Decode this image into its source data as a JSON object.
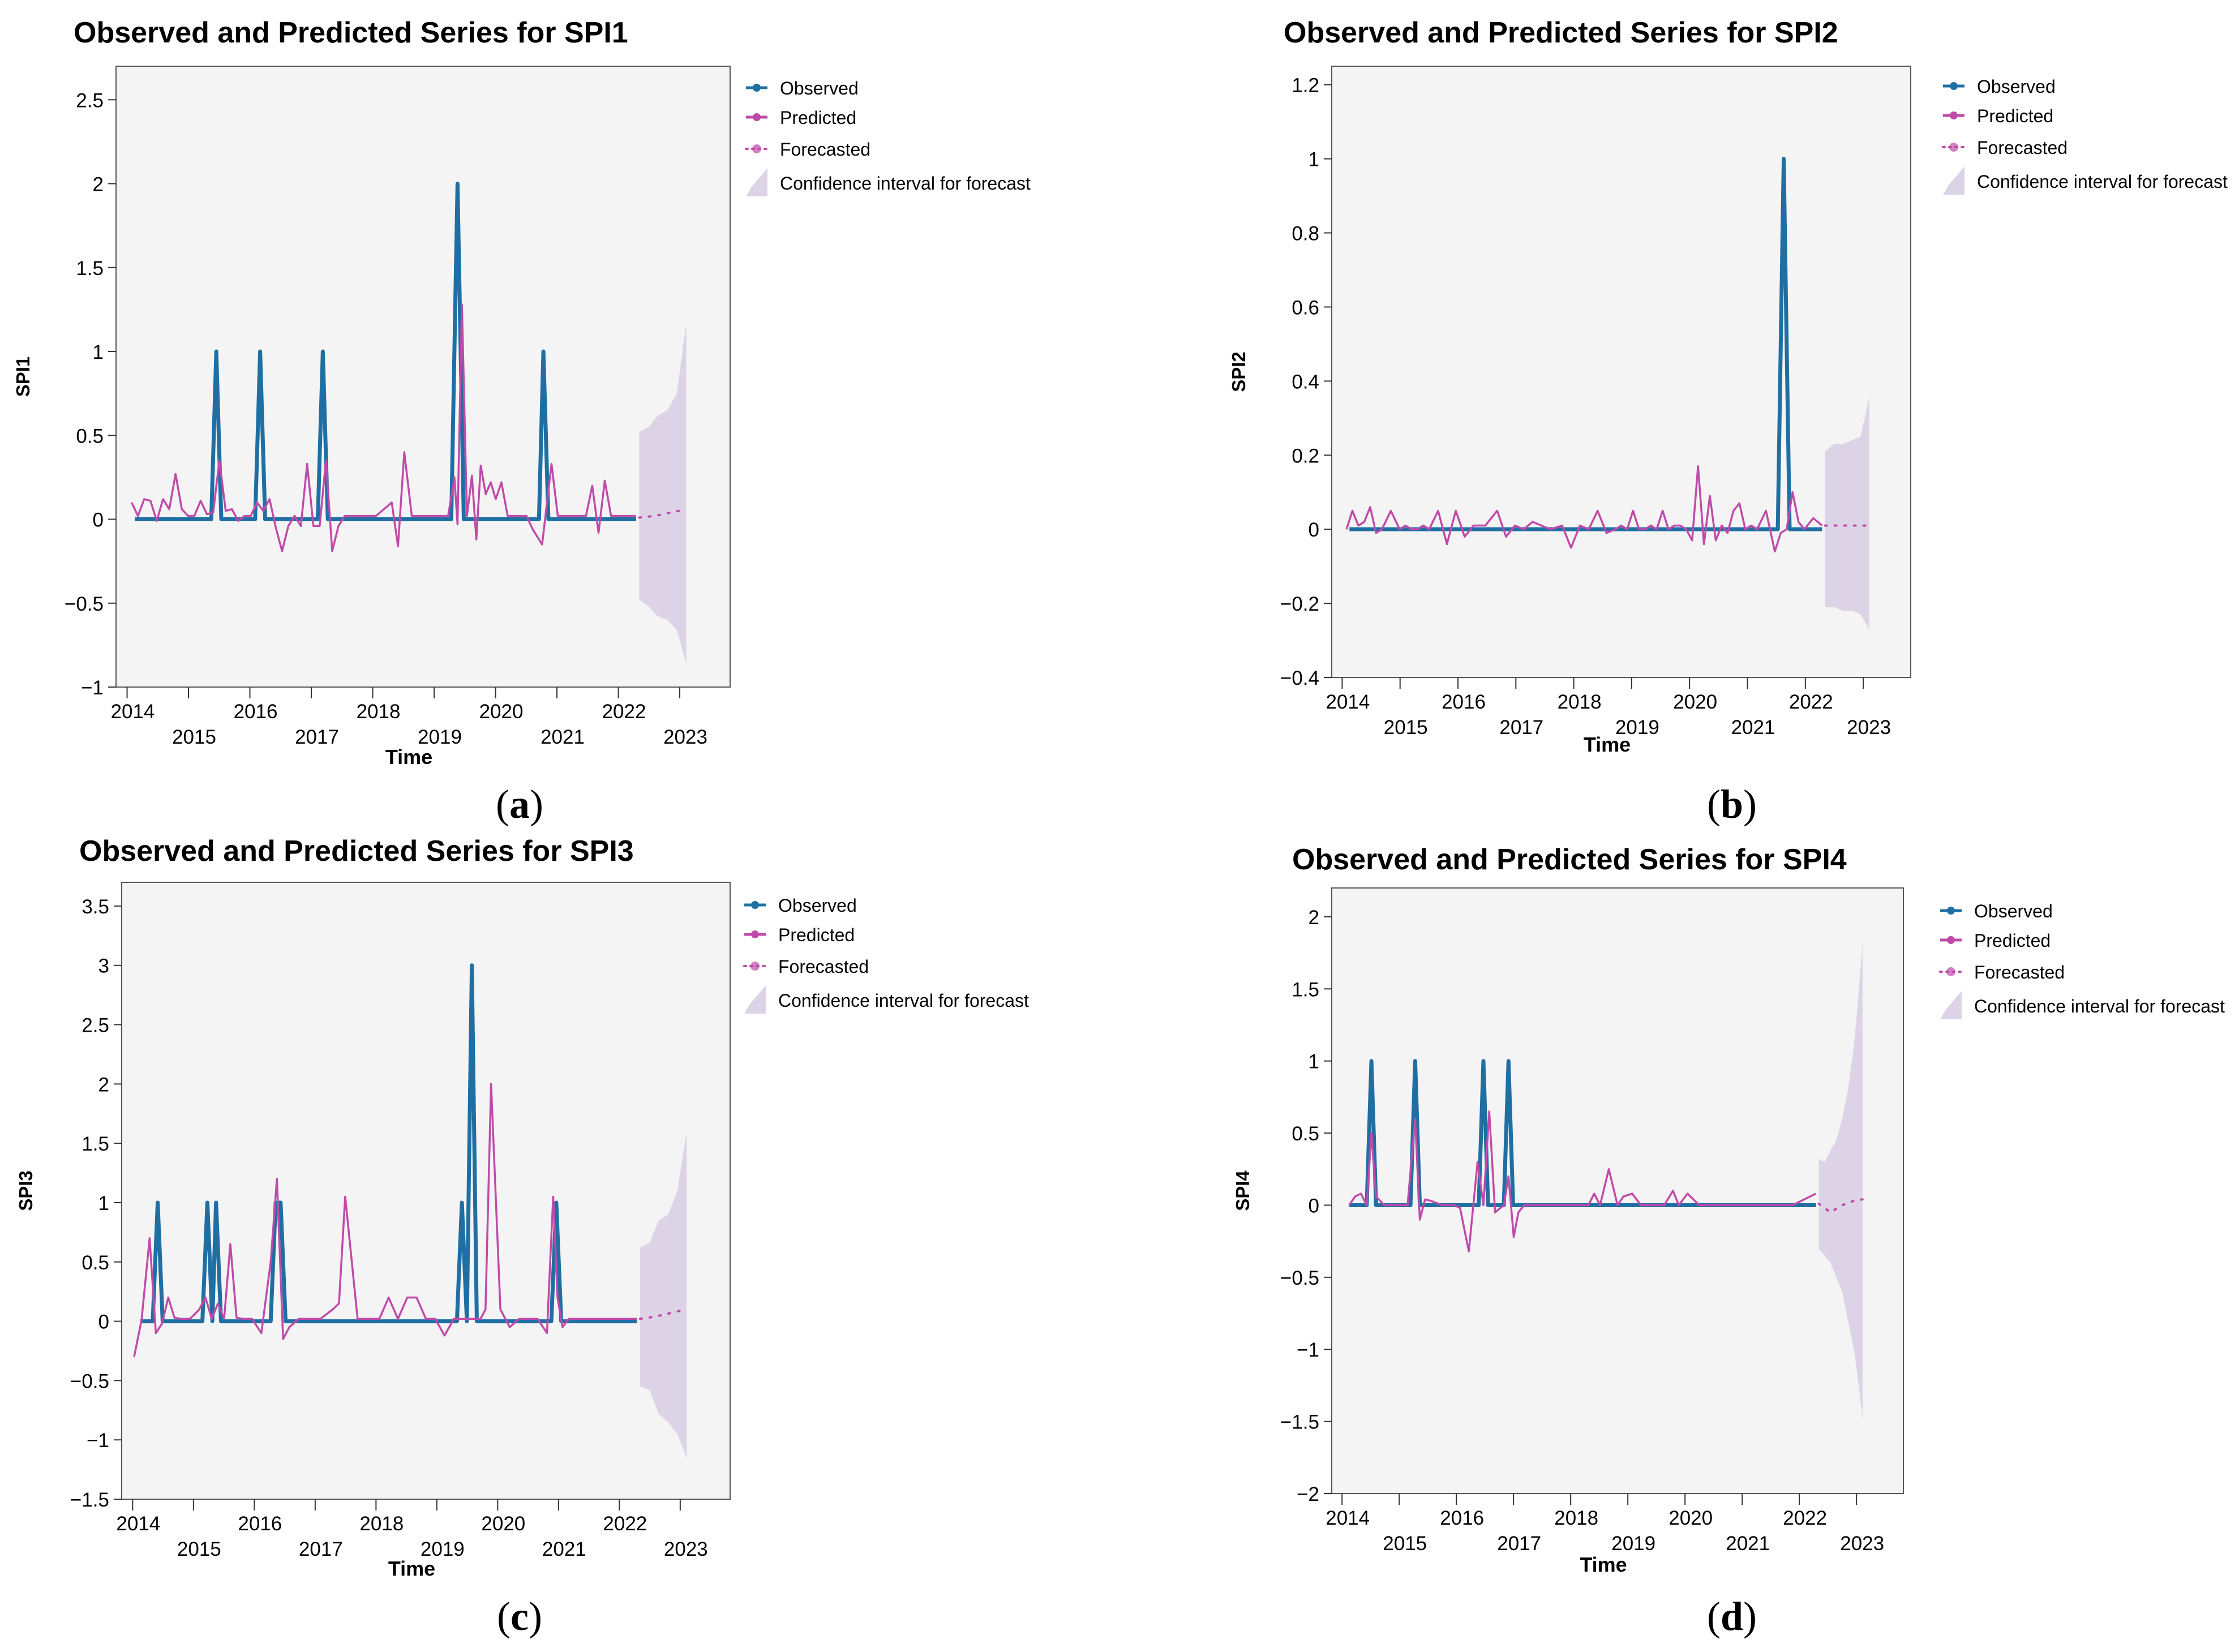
{
  "colors": {
    "observed": "#1f6fa3",
    "predicted": "#c04aa9",
    "forecasted": "#c04aa9",
    "ci": "#ddd3e6",
    "plot_bg": "#f4f4f4"
  },
  "legend": {
    "observed": "Observed",
    "predicted": "Predicted",
    "forecasted": "Forecasted",
    "ci": "Confidence interval for forecast"
  },
  "chart_data": [
    {
      "id": "a",
      "type": "line",
      "caption": "a",
      "title": "Observed and Predicted Series for SPI1",
      "xlabel": "Time",
      "ylabel": "SPI1",
      "ylim": [
        -1,
        2.7
      ],
      "yticks": [
        -1,
        -0.5,
        0,
        0.5,
        1,
        1.5,
        2,
        2.5
      ],
      "ytick_labels": [
        "−1",
        "−0.5",
        "0",
        "0.5",
        "1",
        "1.5",
        "2",
        "2.5"
      ],
      "xlim": [
        2013.6,
        2023.4
      ],
      "xticks": [
        2014,
        2015,
        2016,
        2017,
        2018,
        2019,
        2020,
        2021,
        2022,
        2023
      ],
      "xtick_labels": [
        "2014",
        "2015",
        "2016",
        "2017",
        "2018",
        "2019",
        "2020",
        "2021",
        "2022",
        "2023"
      ],
      "observed": {
        "x": [
          2013.9,
          2015.12,
          2015.2,
          2015.28,
          2015.82,
          2015.9,
          2015.98,
          2016.82,
          2016.9,
          2016.98,
          2018.95,
          2019.05,
          2019.15,
          2020.35,
          2020.42,
          2020.5,
          2021.9
        ],
        "y": [
          0,
          0,
          1,
          0,
          0,
          1,
          0,
          0,
          1,
          0,
          0,
          2,
          0,
          0,
          1,
          0,
          0
        ]
      },
      "predicted": {
        "x": [
          2013.85,
          2013.95,
          2014.05,
          2014.15,
          2014.25,
          2014.35,
          2014.45,
          2014.55,
          2014.65,
          2014.75,
          2014.85,
          2014.95,
          2015.05,
          2015.15,
          2015.25,
          2015.35,
          2015.45,
          2015.55,
          2015.65,
          2015.75,
          2015.85,
          2015.95,
          2016.05,
          2016.15,
          2016.25,
          2016.35,
          2016.45,
          2016.55,
          2016.65,
          2016.75,
          2016.85,
          2016.95,
          2017.05,
          2017.15,
          2017.25,
          2017.5,
          2017.75,
          2018.0,
          2018.1,
          2018.2,
          2018.32,
          2018.45,
          2018.6,
          2018.8,
          2018.9,
          2019.0,
          2019.05,
          2019.12,
          2019.2,
          2019.28,
          2019.35,
          2019.42,
          2019.5,
          2019.58,
          2019.66,
          2019.75,
          2019.85,
          2019.95,
          2020.05,
          2020.15,
          2020.25,
          2020.4,
          2020.55,
          2020.65,
          2020.8,
          2020.95,
          2021.1,
          2021.2,
          2021.3,
          2021.4,
          2021.5,
          2021.6,
          2021.75,
          2021.9
        ],
        "y": [
          0.1,
          0.02,
          0.12,
          0.11,
          -0.01,
          0.12,
          0.06,
          0.27,
          0.06,
          0.02,
          0.02,
          0.11,
          0.03,
          0.04,
          0.35,
          0.05,
          0.06,
          -0.01,
          0.02,
          0.02,
          0.1,
          0.05,
          0.12,
          -0.05,
          -0.19,
          -0.04,
          0.02,
          -0.04,
          0.33,
          -0.04,
          -0.04,
          0.35,
          -0.19,
          -0.04,
          0.02,
          0.02,
          0.02,
          0.1,
          -0.16,
          0.4,
          0.02,
          0.02,
          0.02,
          0.02,
          0.02,
          0.25,
          -0.03,
          1.28,
          0.02,
          0.26,
          -0.12,
          0.32,
          0.15,
          0.22,
          0.12,
          0.22,
          0.02,
          0.02,
          0.02,
          0.02,
          -0.06,
          -0.15,
          0.33,
          0.02,
          0.02,
          0.02,
          0.02,
          0.2,
          -0.08,
          0.23,
          0.02,
          0.02,
          0.02,
          0.02
        ],
        "forecast_x": [
          2021.95,
          2022.2,
          2022.45,
          2022.7
        ],
        "forecast_y": [
          0.01,
          0.02,
          0.04,
          0.06
        ],
        "ci_x": [
          2021.95,
          2022.1,
          2022.25,
          2022.4,
          2022.55,
          2022.7
        ],
        "ci_upper": [
          0.52,
          0.55,
          0.62,
          0.65,
          0.75,
          1.17
        ],
        "ci_lower": [
          -0.48,
          -0.52,
          -0.58,
          -0.6,
          -0.66,
          -0.86
        ]
      }
    },
    {
      "id": "b",
      "type": "line",
      "caption": "b",
      "title": "Observed and Predicted Series for SPI2",
      "xlabel": "Time",
      "ylabel": "SPI2",
      "ylim": [
        -0.4,
        1.25
      ],
      "yticks": [
        -0.4,
        -0.2,
        0,
        0.2,
        0.4,
        0.6,
        0.8,
        1,
        1.2
      ],
      "ytick_labels": [
        "−0.4",
        "−0.2",
        "0",
        "0.2",
        "0.4",
        "0.6",
        "0.8",
        "1",
        "1.2"
      ],
      "xlim": [
        2013.6,
        2023.4
      ],
      "xticks": [
        2014,
        2015,
        2016,
        2017,
        2018,
        2019,
        2020,
        2021,
        2022,
        2023
      ],
      "xtick_labels": [
        "2014",
        "2015",
        "2016",
        "2017",
        "2018",
        "2019",
        "2020",
        "2021",
        "2022",
        "2023"
      ],
      "observed": {
        "x": [
          2013.9,
          2021.15,
          2021.25,
          2021.35,
          2021.9
        ],
        "y": [
          0,
          0,
          1,
          0,
          0
        ]
      },
      "predicted": {
        "x": [
          2013.85,
          2013.95,
          2014.05,
          2014.15,
          2014.25,
          2014.35,
          2014.45,
          2014.6,
          2014.75,
          2014.85,
          2014.95,
          2015.05,
          2015.15,
          2015.25,
          2015.4,
          2015.55,
          2015.7,
          2015.85,
          2016.0,
          2016.2,
          2016.4,
          2016.55,
          2016.7,
          2016.85,
          2017.0,
          2017.15,
          2017.3,
          2017.5,
          2017.65,
          2017.8,
          2017.95,
          2018.1,
          2018.25,
          2018.4,
          2018.5,
          2018.6,
          2018.7,
          2018.8,
          2018.9,
          2019.0,
          2019.1,
          2019.2,
          2019.3,
          2019.4,
          2019.5,
          2019.6,
          2019.7,
          2019.8,
          2019.9,
          2020.0,
          2020.1,
          2020.2,
          2020.3,
          2020.4,
          2020.5,
          2020.6,
          2020.7,
          2020.8,
          2020.95,
          2021.1,
          2021.2,
          2021.3,
          2021.4,
          2021.5,
          2021.6,
          2021.75,
          2021.9
        ],
        "y": [
          0.0,
          0.05,
          0.01,
          0.02,
          0.06,
          -0.01,
          0.0,
          0.05,
          0.0,
          0.01,
          0.0,
          0.0,
          0.01,
          0.0,
          0.05,
          -0.04,
          0.05,
          -0.02,
          0.01,
          0.01,
          0.05,
          -0.02,
          0.01,
          0.0,
          0.02,
          0.01,
          0.0,
          0.01,
          -0.05,
          0.01,
          0.0,
          0.05,
          -0.01,
          0.0,
          0.01,
          0.0,
          0.05,
          0.0,
          0.0,
          0.01,
          0.0,
          0.05,
          0.0,
          0.01,
          0.01,
          0.0,
          -0.03,
          0.17,
          -0.04,
          0.09,
          -0.03,
          0.01,
          -0.01,
          0.05,
          0.07,
          0.0,
          0.01,
          0.0,
          0.05,
          -0.06,
          -0.01,
          0.0,
          0.1,
          0.02,
          0.0,
          0.03,
          0.01
        ],
        "forecast_x": [
          2021.95,
          2022.2,
          2022.45,
          2022.7
        ],
        "forecast_y": [
          0.01,
          0.01,
          0.01,
          0.01
        ],
        "ci_x": [
          2021.95,
          2022.1,
          2022.25,
          2022.4,
          2022.55,
          2022.7
        ],
        "ci_upper": [
          0.21,
          0.23,
          0.23,
          0.24,
          0.25,
          0.36
        ],
        "ci_lower": [
          -0.21,
          -0.21,
          -0.22,
          -0.22,
          -0.23,
          -0.27
        ]
      }
    },
    {
      "id": "c",
      "type": "line",
      "caption": "c",
      "title": "Observed and Predicted Series for SPI3",
      "xlabel": "Time",
      "ylabel": "SPI3",
      "ylim": [
        -1.5,
        3.7
      ],
      "yticks": [
        -1.5,
        -1,
        -0.5,
        0,
        0.5,
        1,
        1.5,
        2,
        2.5,
        3,
        3.5
      ],
      "ytick_labels": [
        "−1.5",
        "−1",
        "−0.5",
        "0",
        "0.5",
        "1",
        "1.5",
        "2",
        "2.5",
        "3",
        "3.5"
      ],
      "xlim": [
        2013.6,
        2023.4
      ],
      "xticks": [
        2014,
        2015,
        2016,
        2017,
        2018,
        2019,
        2020,
        2021,
        2022,
        2023
      ],
      "xtick_labels": [
        "2014",
        "2015",
        "2016",
        "2017",
        "2018",
        "2019",
        "2020",
        "2021",
        "2022",
        "2023"
      ],
      "observed": {
        "x": [
          2013.9,
          2014.1,
          2014.18,
          2014.26,
          2014.9,
          2014.98,
          2015.06,
          2015.12,
          2015.2,
          2016.0,
          2016.08,
          2016.16,
          2016.24,
          2019.0,
          2019.08,
          2019.16,
          2019.24,
          2019.32,
          2019.4,
          2020.52,
          2020.6,
          2020.68,
          2021.9
        ],
        "y": [
          0,
          0,
          1,
          0,
          0,
          1,
          0,
          1,
          0,
          0,
          1,
          1,
          0,
          0,
          1,
          0,
          3,
          0,
          0,
          0,
          1,
          0,
          0
        ]
      },
      "predicted": {
        "x": [
          2013.8,
          2013.92,
          2014.05,
          2014.15,
          2014.25,
          2014.35,
          2014.45,
          2014.55,
          2014.7,
          2014.85,
          2014.95,
          2015.05,
          2015.15,
          2015.25,
          2015.35,
          2015.45,
          2015.55,
          2015.7,
          2015.85,
          2016.0,
          2016.1,
          2016.2,
          2016.3,
          2016.45,
          2016.6,
          2016.8,
          2017.0,
          2017.1,
          2017.2,
          2017.4,
          2017.6,
          2017.75,
          2017.9,
          2018.05,
          2018.2,
          2018.35,
          2018.5,
          2018.65,
          2018.8,
          2018.95,
          2019.05,
          2019.15,
          2019.3,
          2019.38,
          2019.46,
          2019.55,
          2019.7,
          2019.85,
          2020.0,
          2020.15,
          2020.3,
          2020.45,
          2020.55,
          2020.62,
          2020.7,
          2020.8,
          2020.95,
          2021.2,
          2021.5,
          2021.9
        ],
        "y": [
          -0.3,
          0.01,
          0.7,
          -0.1,
          -0.02,
          0.2,
          0.03,
          0.02,
          0.02,
          0.1,
          0.2,
          0.02,
          0.15,
          0.02,
          0.65,
          0.03,
          0.02,
          0.02,
          -0.1,
          0.5,
          1.2,
          -0.15,
          -0.05,
          0.02,
          0.02,
          0.02,
          0.1,
          0.15,
          1.05,
          0.02,
          0.02,
          0.02,
          0.2,
          0.02,
          0.2,
          0.2,
          0.02,
          0.02,
          -0.12,
          0.02,
          0.02,
          0.02,
          0.02,
          0.02,
          0.1,
          2.0,
          0.1,
          -0.05,
          0.02,
          0.02,
          0.02,
          -0.1,
          1.05,
          0.2,
          -0.05,
          0.02,
          0.02,
          0.02,
          0.02,
          0.02
        ],
        "forecast_x": [
          2021.95,
          2022.2,
          2022.45,
          2022.7
        ],
        "forecast_y": [
          0.02,
          0.04,
          0.07,
          0.1
        ],
        "ci_x": [
          2021.95,
          2022.1,
          2022.25,
          2022.4,
          2022.55,
          2022.7
        ],
        "ci_upper": [
          0.62,
          0.66,
          0.85,
          0.9,
          1.1,
          1.6
        ],
        "ci_lower": [
          -0.55,
          -0.58,
          -0.78,
          -0.85,
          -0.95,
          -1.15
        ]
      }
    },
    {
      "id": "d",
      "type": "line",
      "caption": "d",
      "title": "Observed and Predicted Series for SPI4",
      "xlabel": "Time",
      "ylabel": "SPI4",
      "ylim": [
        -2,
        2.2
      ],
      "yticks": [
        -2,
        -1.5,
        -1,
        -0.5,
        0,
        0.5,
        1,
        1.5,
        2
      ],
      "ytick_labels": [
        "−2",
        "−1.5",
        "−1",
        "−0.5",
        "0",
        "0.5",
        "1",
        "1.5",
        "2"
      ],
      "xlim": [
        2013.6,
        2023.4
      ],
      "xticks": [
        2014,
        2015,
        2016,
        2017,
        2018,
        2019,
        2020,
        2021,
        2022,
        2023
      ],
      "xtick_labels": [
        "2014",
        "2015",
        "2016",
        "2017",
        "2018",
        "2019",
        "2020",
        "2021",
        "2022",
        "2023"
      ],
      "observed": {
        "x": [
          2013.9,
          2014.2,
          2014.28,
          2014.36,
          2014.95,
          2015.03,
          2015.11,
          2016.12,
          2016.2,
          2016.28,
          2016.55,
          2016.63,
          2016.71,
          2021.9
        ],
        "y": [
          0,
          0,
          1,
          0,
          0,
          1,
          0,
          0,
          1,
          0,
          0,
          1,
          0,
          0
        ]
      },
      "predicted": {
        "x": [
          2013.9,
          2014.0,
          2014.1,
          2014.2,
          2014.28,
          2014.36,
          2014.5,
          2014.7,
          2014.9,
          2015.03,
          2015.11,
          2015.2,
          2015.3,
          2015.5,
          2015.7,
          2015.8,
          2015.95,
          2016.1,
          2016.2,
          2016.3,
          2016.4,
          2016.55,
          2016.63,
          2016.72,
          2016.8,
          2016.9,
          2017.1,
          2017.4,
          2017.7,
          2018.0,
          2018.1,
          2018.2,
          2018.35,
          2018.5,
          2018.6,
          2018.75,
          2018.9,
          2019.1,
          2019.3,
          2019.45,
          2019.55,
          2019.7,
          2019.9,
          2020.2,
          2020.6,
          2021.0,
          2021.5,
          2021.9
        ],
        "y": [
          0.0,
          0.06,
          0.08,
          0.0,
          0.5,
          0.06,
          0.0,
          0.0,
          0.0,
          0.6,
          -0.1,
          0.04,
          0.03,
          0.0,
          0.0,
          -0.02,
          -0.32,
          0.3,
          0.0,
          0.65,
          -0.05,
          0.0,
          0.2,
          -0.22,
          -0.05,
          0.0,
          0.0,
          0.0,
          0.0,
          0.0,
          0.08,
          0.0,
          0.25,
          0.0,
          0.06,
          0.08,
          0.0,
          0.0,
          0.0,
          0.1,
          0.0,
          0.08,
          0.0,
          0.0,
          0.0,
          0.0,
          0.0,
          0.08
        ],
        "forecast_x": [
          2021.95,
          2022.15,
          2022.35,
          2022.55,
          2022.7
        ],
        "forecast_y": [
          0.01,
          -0.05,
          0.0,
          0.03,
          0.04
        ],
        "ci_x": [
          2021.95,
          2022.05,
          2022.15,
          2022.25,
          2022.35,
          2022.45,
          2022.55,
          2022.62,
          2022.7
        ],
        "ci_upper": [
          0.32,
          0.3,
          0.38,
          0.45,
          0.6,
          0.8,
          1.1,
          1.4,
          1.82
        ],
        "ci_lower": [
          -0.3,
          -0.35,
          -0.4,
          -0.5,
          -0.6,
          -0.8,
          -1.0,
          -1.2,
          -1.48
        ]
      }
    }
  ]
}
